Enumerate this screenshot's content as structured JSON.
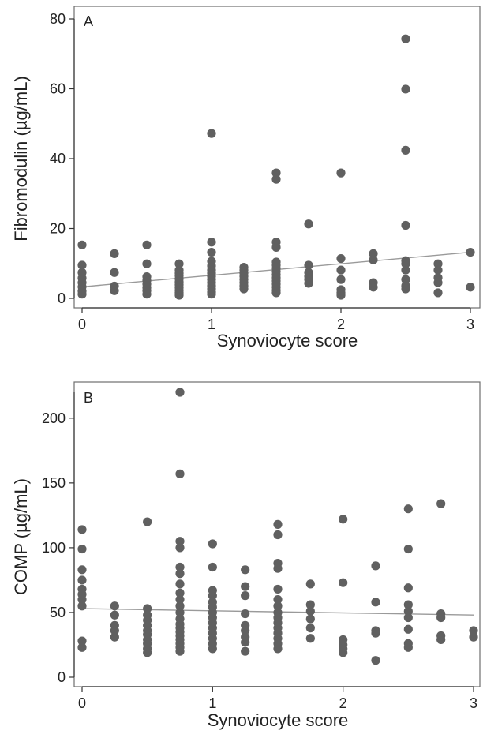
{
  "colors": {
    "marker": "#606060",
    "fit_line": "#9a9a9a",
    "frame": "#6e6e6e",
    "text": "#222222"
  },
  "chart_data": [
    {
      "type": "scatter",
      "panel_label": "A",
      "xlabel": "Synoviocyte score",
      "ylabel": "Fibromodulin (µg/mL)",
      "xlim": [
        0,
        3
      ],
      "ylim": [
        0,
        80
      ],
      "xticks": [
        "0",
        "1",
        "2",
        "3"
      ],
      "yticks": [
        "0",
        "20",
        "40",
        "60",
        "80"
      ],
      "grid": false,
      "legend": "none",
      "fit_line": {
        "x": [
          0,
          3
        ],
        "y": [
          3.3,
          13.2
        ]
      },
      "points": [
        [
          0,
          15.3
        ],
        [
          0,
          9.5
        ],
        [
          0,
          7.4
        ],
        [
          0,
          5.8
        ],
        [
          0,
          4.5
        ],
        [
          0,
          3.3
        ],
        [
          0,
          2.1
        ],
        [
          0,
          1.2
        ],
        [
          0.25,
          12.8
        ],
        [
          0.25,
          7.4
        ],
        [
          0.25,
          3.5
        ],
        [
          0.25,
          2.2
        ],
        [
          0.5,
          15.3
        ],
        [
          0.5,
          9.9
        ],
        [
          0.5,
          6.2
        ],
        [
          0.5,
          5.1
        ],
        [
          0.5,
          4.1
        ],
        [
          0.5,
          3.1
        ],
        [
          0.5,
          2.2
        ],
        [
          0.5,
          1.2
        ],
        [
          0.75,
          9.9
        ],
        [
          0.75,
          8.1
        ],
        [
          0.75,
          7.2
        ],
        [
          0.75,
          6.5
        ],
        [
          0.75,
          5.6
        ],
        [
          0.75,
          4.7
        ],
        [
          0.75,
          3.9
        ],
        [
          0.75,
          3.1
        ],
        [
          0.75,
          2.3
        ],
        [
          0.75,
          1.6
        ],
        [
          0.75,
          0.9
        ],
        [
          1,
          47.2
        ],
        [
          1,
          16.1
        ],
        [
          1,
          13.2
        ],
        [
          1,
          10.6
        ],
        [
          1,
          9.3
        ],
        [
          1,
          8.1
        ],
        [
          1,
          7.2
        ],
        [
          1,
          6.3
        ],
        [
          1,
          5.4
        ],
        [
          1,
          4.5
        ],
        [
          1,
          3.6
        ],
        [
          1,
          2.7
        ],
        [
          1,
          1.8
        ],
        [
          1,
          1.2
        ],
        [
          1.25,
          8.9
        ],
        [
          1.25,
          8.1
        ],
        [
          1.25,
          7.2
        ],
        [
          1.25,
          6.3
        ],
        [
          1.25,
          5.4
        ],
        [
          1.25,
          4.5
        ],
        [
          1.25,
          3.6
        ],
        [
          1.25,
          2.7
        ],
        [
          1.5,
          35.9
        ],
        [
          1.5,
          34.1
        ],
        [
          1.5,
          16.1
        ],
        [
          1.5,
          14.6
        ],
        [
          1.5,
          10.4
        ],
        [
          1.5,
          9.5
        ],
        [
          1.5,
          8.6
        ],
        [
          1.5,
          7.7
        ],
        [
          1.5,
          6.8
        ],
        [
          1.5,
          5.9
        ],
        [
          1.5,
          5.0
        ],
        [
          1.5,
          4.1
        ],
        [
          1.5,
          3.2
        ],
        [
          1.5,
          2.3
        ],
        [
          1.5,
          1.6
        ],
        [
          1.75,
          21.3
        ],
        [
          1.75,
          9.5
        ],
        [
          1.75,
          7.4
        ],
        [
          1.75,
          6.3
        ],
        [
          1.75,
          5.4
        ],
        [
          1.75,
          4.3
        ],
        [
          2,
          35.9
        ],
        [
          2,
          11.4
        ],
        [
          2,
          8.1
        ],
        [
          2,
          5.4
        ],
        [
          2,
          2.5
        ],
        [
          2,
          1.6
        ],
        [
          2,
          0.9
        ],
        [
          2.25,
          12.8
        ],
        [
          2.25,
          11.0
        ],
        [
          2.25,
          4.5
        ],
        [
          2.25,
          3.2
        ],
        [
          2.5,
          74.3
        ],
        [
          2.5,
          59.9
        ],
        [
          2.5,
          42.4
        ],
        [
          2.5,
          20.9
        ],
        [
          2.5,
          10.8
        ],
        [
          2.5,
          9.9
        ],
        [
          2.5,
          8.1
        ],
        [
          2.5,
          5.4
        ],
        [
          2.5,
          3.6
        ],
        [
          2.5,
          2.7
        ],
        [
          2.75,
          9.9
        ],
        [
          2.75,
          8.1
        ],
        [
          2.75,
          5.9
        ],
        [
          2.75,
          4.5
        ],
        [
          2.75,
          1.6
        ],
        [
          3,
          13.2
        ],
        [
          3,
          3.2
        ]
      ]
    },
    {
      "type": "scatter",
      "panel_label": "B",
      "xlabel": "Synoviocyte score",
      "ylabel": "COMP (µg/mL)",
      "xlim": [
        0,
        3
      ],
      "ylim": [
        0,
        220
      ],
      "xticks": [
        "0",
        "1",
        "2",
        "3"
      ],
      "yticks": [
        "0",
        "50",
        "100",
        "150",
        "200"
      ],
      "grid": false,
      "legend": "none",
      "fit_line": {
        "x": [
          0,
          3
        ],
        "y": [
          53,
          48
        ]
      },
      "points": [
        [
          0,
          114
        ],
        [
          0,
          99
        ],
        [
          0,
          83
        ],
        [
          0,
          75
        ],
        [
          0,
          68
        ],
        [
          0,
          64
        ],
        [
          0,
          60
        ],
        [
          0,
          55
        ],
        [
          0,
          28
        ],
        [
          0,
          23
        ],
        [
          0.25,
          55
        ],
        [
          0.25,
          48
        ],
        [
          0.25,
          40
        ],
        [
          0.25,
          36
        ],
        [
          0.25,
          31
        ],
        [
          0.5,
          120
        ],
        [
          0.5,
          53
        ],
        [
          0.5,
          48
        ],
        [
          0.5,
          44
        ],
        [
          0.5,
          40
        ],
        [
          0.5,
          36
        ],
        [
          0.5,
          33
        ],
        [
          0.5,
          29
        ],
        [
          0.5,
          26
        ],
        [
          0.5,
          22
        ],
        [
          0.5,
          19
        ],
        [
          0.75,
          220
        ],
        [
          0.75,
          157
        ],
        [
          0.75,
          105
        ],
        [
          0.75,
          100
        ],
        [
          0.75,
          85
        ],
        [
          0.75,
          80
        ],
        [
          0.75,
          72
        ],
        [
          0.75,
          65
        ],
        [
          0.75,
          60
        ],
        [
          0.75,
          55
        ],
        [
          0.75,
          50
        ],
        [
          0.75,
          45
        ],
        [
          0.75,
          41
        ],
        [
          0.75,
          38
        ],
        [
          0.75,
          35
        ],
        [
          0.75,
          32
        ],
        [
          0.75,
          29
        ],
        [
          0.75,
          26
        ],
        [
          0.75,
          23
        ],
        [
          0.75,
          20
        ],
        [
          1,
          103
        ],
        [
          1,
          85
        ],
        [
          1,
          67
        ],
        [
          1,
          63
        ],
        [
          1,
          58
        ],
        [
          1,
          54
        ],
        [
          1,
          50
        ],
        [
          1,
          46
        ],
        [
          1,
          42
        ],
        [
          1,
          38
        ],
        [
          1,
          34
        ],
        [
          1,
          30
        ],
        [
          1,
          26
        ],
        [
          1,
          22
        ],
        [
          1.25,
          83
        ],
        [
          1.25,
          70
        ],
        [
          1.25,
          63
        ],
        [
          1.25,
          49
        ],
        [
          1.25,
          40
        ],
        [
          1.25,
          36
        ],
        [
          1.25,
          31
        ],
        [
          1.25,
          27
        ],
        [
          1.25,
          20
        ],
        [
          1.5,
          118
        ],
        [
          1.5,
          110
        ],
        [
          1.5,
          88
        ],
        [
          1.5,
          84
        ],
        [
          1.5,
          68
        ],
        [
          1.5,
          60
        ],
        [
          1.5,
          55
        ],
        [
          1.5,
          50
        ],
        [
          1.5,
          46
        ],
        [
          1.5,
          42
        ],
        [
          1.5,
          38
        ],
        [
          1.5,
          34
        ],
        [
          1.5,
          30
        ],
        [
          1.5,
          26
        ],
        [
          1.5,
          22
        ],
        [
          1.75,
          72
        ],
        [
          1.75,
          56
        ],
        [
          1.75,
          51
        ],
        [
          1.75,
          45
        ],
        [
          1.75,
          38
        ],
        [
          1.75,
          30
        ],
        [
          2,
          122
        ],
        [
          2,
          73
        ],
        [
          2,
          29
        ],
        [
          2,
          25
        ],
        [
          2,
          22
        ],
        [
          2,
          19
        ],
        [
          2.25,
          86
        ],
        [
          2.25,
          58
        ],
        [
          2.25,
          36
        ],
        [
          2.25,
          34
        ],
        [
          2.25,
          13
        ],
        [
          2.5,
          130
        ],
        [
          2.5,
          99
        ],
        [
          2.5,
          69
        ],
        [
          2.5,
          56
        ],
        [
          2.5,
          51
        ],
        [
          2.5,
          46
        ],
        [
          2.5,
          37
        ],
        [
          2.5,
          26
        ],
        [
          2.5,
          23
        ],
        [
          2.75,
          134
        ],
        [
          2.75,
          49
        ],
        [
          2.75,
          46
        ],
        [
          2.75,
          32
        ],
        [
          2.75,
          29
        ],
        [
          3,
          36
        ],
        [
          3,
          31
        ]
      ]
    }
  ]
}
